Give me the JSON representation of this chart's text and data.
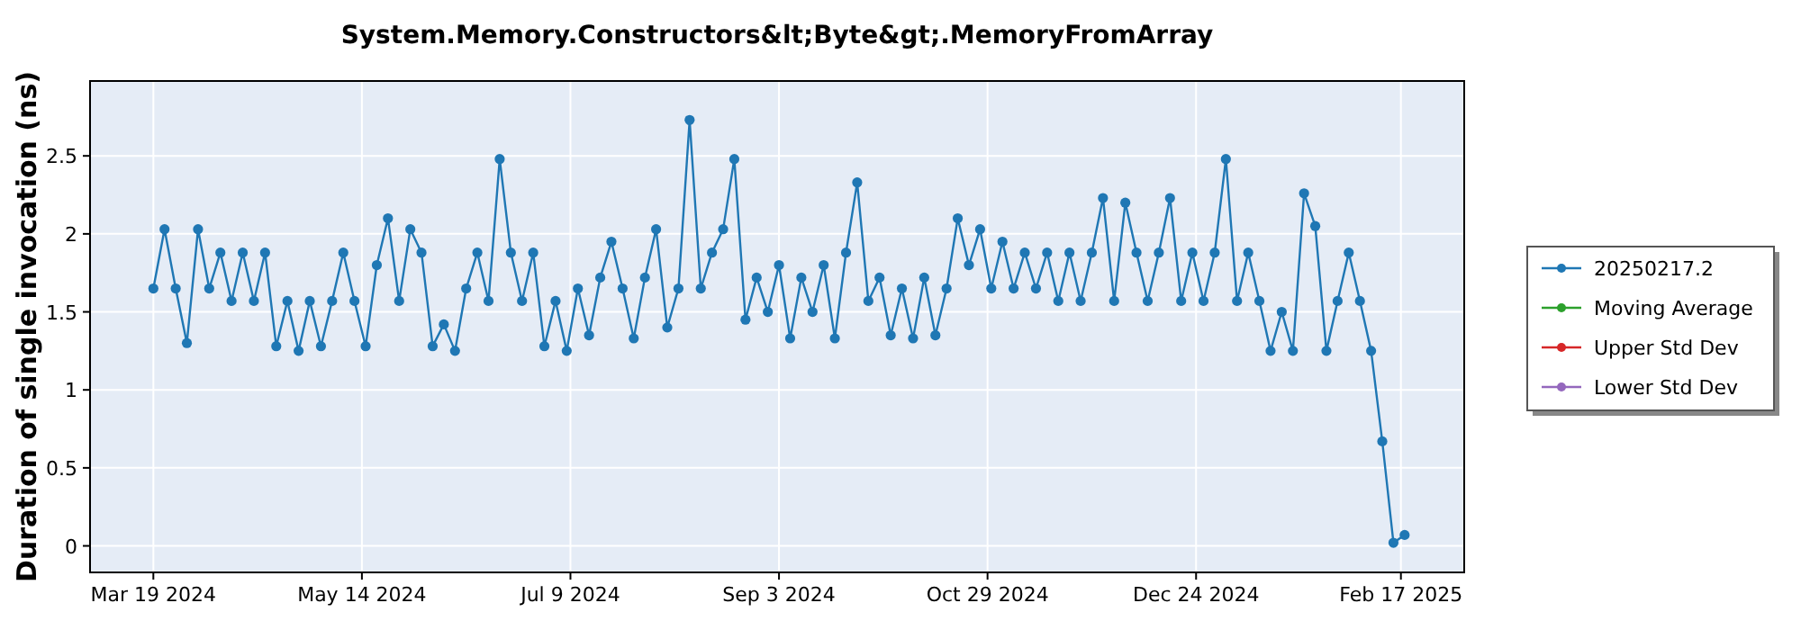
{
  "chart_data": {
    "type": "line",
    "title": "System.Memory.Constructors&lt;Byte&gt;.MemoryFromArray",
    "ylabel": "Duration of single invocation (ns)",
    "x": [
      "2024-03-19",
      "2024-03-22",
      "2024-03-25",
      "2024-03-28",
      "2024-03-31",
      "2024-04-03",
      "2024-04-06",
      "2024-04-09",
      "2024-04-12",
      "2024-04-15",
      "2024-04-18",
      "2024-04-21",
      "2024-04-24",
      "2024-04-27",
      "2024-04-30",
      "2024-05-03",
      "2024-05-06",
      "2024-05-09",
      "2024-05-12",
      "2024-05-15",
      "2024-05-18",
      "2024-05-21",
      "2024-05-24",
      "2024-05-27",
      "2024-05-30",
      "2024-06-02",
      "2024-06-05",
      "2024-06-08",
      "2024-06-11",
      "2024-06-14",
      "2024-06-17",
      "2024-06-20",
      "2024-06-23",
      "2024-06-26",
      "2024-06-29",
      "2024-07-02",
      "2024-07-05",
      "2024-07-08",
      "2024-07-11",
      "2024-07-14",
      "2024-07-17",
      "2024-07-20",
      "2024-07-23",
      "2024-07-26",
      "2024-07-29",
      "2024-08-01",
      "2024-08-04",
      "2024-08-07",
      "2024-08-10",
      "2024-08-13",
      "2024-08-16",
      "2024-08-19",
      "2024-08-22",
      "2024-08-25",
      "2024-08-28",
      "2024-08-31",
      "2024-09-03",
      "2024-09-06",
      "2024-09-09",
      "2024-09-12",
      "2024-09-15",
      "2024-09-18",
      "2024-09-21",
      "2024-09-24",
      "2024-09-27",
      "2024-09-30",
      "2024-10-03",
      "2024-10-06",
      "2024-10-09",
      "2024-10-12",
      "2024-10-15",
      "2024-10-18",
      "2024-10-21",
      "2024-10-24",
      "2024-10-27",
      "2024-10-30",
      "2024-11-02",
      "2024-11-05",
      "2024-11-08",
      "2024-11-11",
      "2024-11-14",
      "2024-11-17",
      "2024-11-20",
      "2024-11-23",
      "2024-11-26",
      "2024-11-29",
      "2024-12-02",
      "2024-12-05",
      "2024-12-08",
      "2024-12-11",
      "2024-12-14",
      "2024-12-17",
      "2024-12-20",
      "2024-12-23",
      "2024-12-26",
      "2024-12-29",
      "2025-01-01",
      "2025-01-04",
      "2025-01-07",
      "2025-01-10",
      "2025-01-13",
      "2025-01-16",
      "2025-01-19",
      "2025-01-22",
      "2025-01-25",
      "2025-01-28",
      "2025-01-31",
      "2025-02-03",
      "2025-02-06",
      "2025-02-09",
      "2025-02-12",
      "2025-02-15",
      "2025-02-18"
    ],
    "series": [
      {
        "name": "20250217.2",
        "color": "#1f77b4",
        "values": [
          1.65,
          2.03,
          1.65,
          1.3,
          2.03,
          1.65,
          1.88,
          1.57,
          1.88,
          1.57,
          1.88,
          1.28,
          1.57,
          1.25,
          1.57,
          1.28,
          1.57,
          1.88,
          1.57,
          1.28,
          1.8,
          2.1,
          1.57,
          2.03,
          1.88,
          1.28,
          1.42,
          1.25,
          1.65,
          1.88,
          1.57,
          2.48,
          1.88,
          1.57,
          1.88,
          1.28,
          1.57,
          1.25,
          1.65,
          1.35,
          1.72,
          1.95,
          1.65,
          1.33,
          1.72,
          2.03,
          1.4,
          1.65,
          2.73,
          1.65,
          1.88,
          2.03,
          2.48,
          1.45,
          1.72,
          1.5,
          1.8,
          1.33,
          1.72,
          1.5,
          1.8,
          1.33,
          1.88,
          2.33,
          1.57,
          1.72,
          1.35,
          1.65,
          1.33,
          1.72,
          1.35,
          1.65,
          2.1,
          1.8,
          2.03,
          1.65,
          1.95,
          1.65,
          1.88,
          1.65,
          1.88,
          1.57,
          1.88,
          1.57,
          1.88,
          2.23,
          1.57,
          2.2,
          1.88,
          1.57,
          1.88,
          2.23,
          1.57,
          1.88,
          1.57,
          1.88,
          2.48,
          1.57,
          1.88,
          1.57,
          1.25,
          1.5,
          1.25,
          2.26,
          2.05,
          1.25,
          1.57,
          1.88,
          1.57,
          1.25,
          0.67,
          0.02,
          0.07
        ]
      },
      {
        "name": "Moving Average",
        "color": "#2ca02c",
        "values": [
          null,
          null,
          null,
          null,
          null,
          null,
          null,
          null,
          null,
          null,
          null,
          null,
          null,
          null,
          null,
          null,
          null,
          null,
          null,
          null,
          null,
          null,
          null,
          null,
          null,
          null,
          null,
          null,
          null,
          null,
          null,
          null,
          null,
          null,
          null,
          null,
          null,
          null,
          null,
          null,
          null,
          null,
          null,
          null,
          null,
          null,
          null,
          null,
          null,
          null,
          null,
          null,
          null,
          null,
          null,
          null,
          null,
          null,
          null,
          null,
          null,
          null,
          null,
          null,
          null,
          null,
          null,
          null,
          null,
          null,
          null,
          null,
          null,
          null,
          null,
          null,
          null,
          null,
          null,
          null,
          null,
          null,
          null,
          null,
          null,
          null,
          null,
          null,
          null,
          null,
          null,
          null,
          null,
          null,
          null,
          null,
          null,
          null,
          null,
          null,
          null,
          null,
          null,
          null,
          null,
          null,
          null,
          null,
          null,
          null,
          null,
          null,
          null
        ]
      },
      {
        "name": "Upper Std Dev",
        "color": "#d62728",
        "values": [
          null,
          null,
          null,
          null,
          null,
          null,
          null,
          null,
          null,
          null,
          null,
          null,
          null,
          null,
          null,
          null,
          null,
          null,
          null,
          null,
          null,
          null,
          null,
          null,
          null,
          null,
          null,
          null,
          null,
          null,
          null,
          null,
          null,
          null,
          null,
          null,
          null,
          null,
          null,
          null,
          null,
          null,
          null,
          null,
          null,
          null,
          null,
          null,
          null,
          null,
          null,
          null,
          null,
          null,
          null,
          null,
          null,
          null,
          null,
          null,
          null,
          null,
          null,
          null,
          null,
          null,
          null,
          null,
          null,
          null,
          null,
          null,
          null,
          null,
          null,
          null,
          null,
          null,
          null,
          null,
          null,
          null,
          null,
          null,
          null,
          null,
          null,
          null,
          null,
          null,
          null,
          null,
          null,
          null,
          null,
          null,
          null,
          null,
          null,
          null,
          null,
          null,
          null,
          null,
          null,
          null,
          null,
          null,
          null,
          null,
          null,
          null,
          null
        ]
      },
      {
        "name": "Lower Std Dev",
        "color": "#9467bd",
        "values": [
          null,
          null,
          null,
          null,
          null,
          null,
          null,
          null,
          null,
          null,
          null,
          null,
          null,
          null,
          null,
          null,
          null,
          null,
          null,
          null,
          null,
          null,
          null,
          null,
          null,
          null,
          null,
          null,
          null,
          null,
          null,
          null,
          null,
          null,
          null,
          null,
          null,
          null,
          null,
          null,
          null,
          null,
          null,
          null,
          null,
          null,
          null,
          null,
          null,
          null,
          null,
          null,
          null,
          null,
          null,
          null,
          null,
          null,
          null,
          null,
          null,
          null,
          null,
          null,
          null,
          null,
          null,
          null,
          null,
          null,
          null,
          null,
          null,
          null,
          null,
          null,
          null,
          null,
          null,
          null,
          null,
          null,
          null,
          null,
          null,
          null,
          null,
          null,
          null,
          null,
          null,
          null,
          null,
          null,
          null,
          null,
          null,
          null,
          null,
          null,
          null,
          null,
          null,
          null,
          null,
          null,
          null,
          null,
          null,
          null,
          null,
          null,
          null
        ]
      }
    ],
    "xlim": [
      "2024-03-02",
      "2025-03-06"
    ],
    "xticks": [
      {
        "value": "2024-03-19",
        "label": "Mar 19 2024"
      },
      {
        "value": "2024-05-14",
        "label": "May 14 2024"
      },
      {
        "value": "2024-07-09",
        "label": "Jul 9 2024"
      },
      {
        "value": "2024-09-03",
        "label": "Sep 3 2024"
      },
      {
        "value": "2024-10-29",
        "label": "Oct 29 2024"
      },
      {
        "value": "2024-12-24",
        "label": "Dec 24 2024"
      },
      {
        "value": "2025-02-17",
        "label": "Feb 17 2025"
      }
    ],
    "ylim": [
      -0.17,
      2.98
    ],
    "yticks": [
      0,
      0.5,
      1,
      1.5,
      2,
      2.5
    ],
    "grid": true,
    "legend": "right",
    "marker": "circle",
    "line_style": "solid"
  }
}
